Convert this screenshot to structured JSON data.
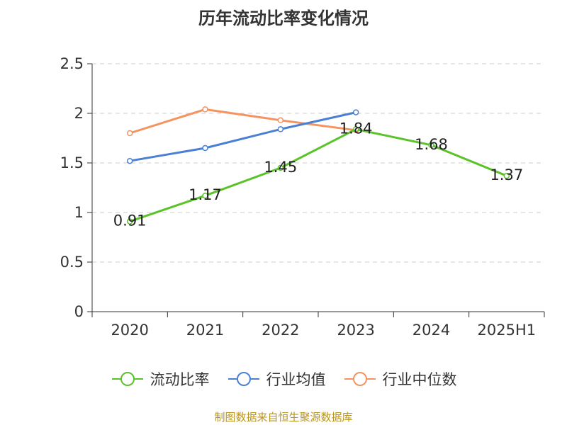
{
  "chart_data": {
    "type": "line",
    "title": "历年流动比率变化情况",
    "categories": [
      "2020",
      "2021",
      "2022",
      "2023",
      "2024",
      "2025H1"
    ],
    "ylim": [
      0,
      2.5
    ],
    "yticks": [
      0,
      0.5,
      1,
      1.5,
      2,
      2.5
    ],
    "ytick_labels": [
      "0",
      "0.5",
      "1",
      "1.5",
      "2",
      "2.5"
    ],
    "grid": true,
    "legend_position": "bottom",
    "series": [
      {
        "name": "流动比率",
        "color": "#5bc32a",
        "values": [
          0.91,
          1.17,
          1.45,
          1.84,
          1.68,
          1.37
        ],
        "labels": [
          "0.91",
          "1.17",
          "1.45",
          "1.84",
          "1.68",
          "1.37"
        ]
      },
      {
        "name": "行业均值",
        "color": "#4a7fd6",
        "values": [
          1.52,
          1.65,
          1.84,
          2.01,
          null,
          null
        ]
      },
      {
        "name": "行业中位数",
        "color": "#f59360",
        "values": [
          1.8,
          2.04,
          1.93,
          1.83,
          null,
          null
        ]
      }
    ]
  },
  "source": "制图数据来自恒生聚源数据库"
}
